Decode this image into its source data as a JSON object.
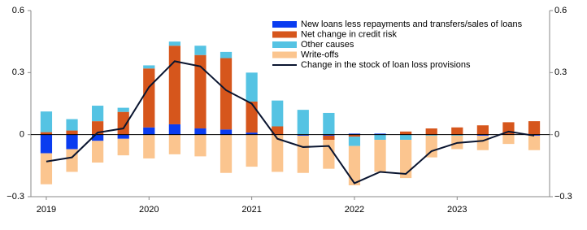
{
  "chart_data": {
    "type": "bar",
    "categories": [
      "2019",
      null,
      null,
      null,
      "2020",
      null,
      null,
      null,
      "2021",
      null,
      null,
      null,
      "2022",
      null,
      null,
      null,
      "2023",
      null,
      null,
      null
    ],
    "series": [
      {
        "name": "New loans less repayments and transfers/sales of loans",
        "type": "bar",
        "color": "#0a3cf0",
        "values": [
          -0.09,
          -0.07,
          -0.03,
          -0.02,
          0.035,
          0.05,
          0.03,
          0.025,
          0.01,
          0,
          -0.005,
          -0.005,
          0.005,
          0.005,
          0,
          0,
          0,
          -0.005,
          0,
          -0.005
        ]
      },
      {
        "name": "Net change in credit risk",
        "type": "bar",
        "color": "#d6561c",
        "values": [
          0.012,
          0.02,
          0.065,
          0.11,
          0.285,
          0.38,
          0.355,
          0.345,
          0.15,
          0.04,
          0,
          -0.02,
          -0.01,
          0,
          0.015,
          0.03,
          0.035,
          0.045,
          0.06,
          0.065
        ]
      },
      {
        "name": "Other causes",
        "type": "bar",
        "color": "#55c3e3",
        "values": [
          0.1,
          0.055,
          0.075,
          0.02,
          0.015,
          0.02,
          0.045,
          0.03,
          0.14,
          0.125,
          0.12,
          0.105,
          -0.045,
          -0.025,
          -0.025,
          -0.005,
          -0.005,
          0,
          0,
          0
        ]
      },
      {
        "name": "Write-offs",
        "type": "bar",
        "color": "#fbc58f",
        "values": [
          -0.15,
          -0.11,
          -0.105,
          -0.08,
          -0.115,
          -0.095,
          -0.105,
          -0.185,
          -0.155,
          -0.18,
          -0.18,
          -0.14,
          -0.19,
          -0.155,
          -0.185,
          -0.105,
          -0.065,
          -0.07,
          -0.045,
          -0.07
        ]
      },
      {
        "name": "Change in the stock of loan loss provisions",
        "type": "line",
        "color": "#0a1530",
        "values": [
          -0.13,
          -0.11,
          0.01,
          0.03,
          0.23,
          0.355,
          0.33,
          0.215,
          0.15,
          -0.02,
          -0.06,
          -0.055,
          -0.235,
          -0.18,
          -0.19,
          -0.08,
          -0.04,
          -0.03,
          0.015,
          -0.005
        ]
      }
    ],
    "ylim": [
      -0.3,
      0.6
    ],
    "yticks": [
      {
        "value": -0.3,
        "label": "−0.3"
      },
      0,
      0.3,
      0.6
    ],
    "y2lim": [
      -0.3,
      0.6
    ],
    "y2ticks": [
      {
        "value": -0.3,
        "label": "−0.3"
      },
      0,
      0.3,
      0.6
    ]
  }
}
